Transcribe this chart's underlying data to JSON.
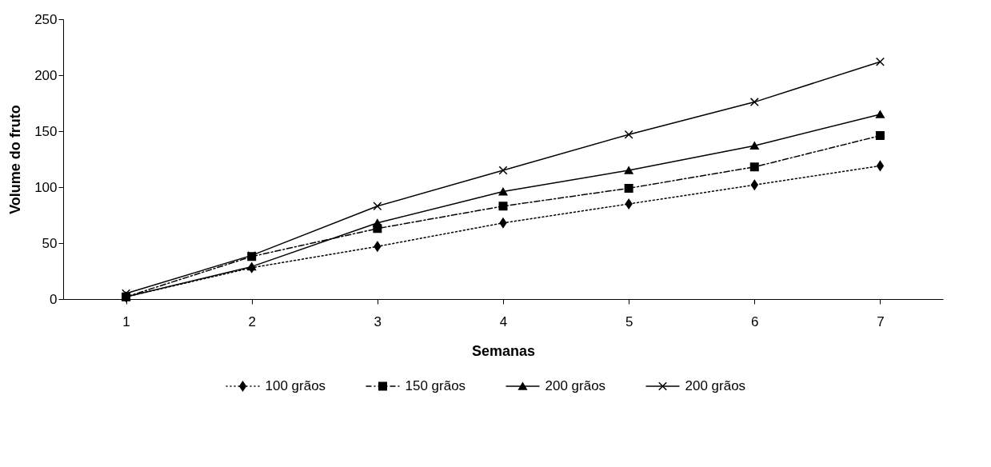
{
  "chart_data": {
    "type": "line",
    "xlabel": "Semanas",
    "ylabel": "Volume do fruto",
    "categories": [
      "1",
      "2",
      "3",
      "4",
      "5",
      "6",
      "7"
    ],
    "ylim": [
      0,
      250
    ],
    "yticks": [
      0,
      50,
      100,
      150,
      200,
      250
    ],
    "grid": false,
    "legend": "bottom",
    "series": [
      {
        "name": "100 grãos",
        "color": "#000000",
        "marker": "diamond",
        "line_style": "dotted",
        "values": [
          2,
          28,
          47,
          68,
          85,
          102,
          119
        ]
      },
      {
        "name": "150 grãos",
        "color": "#000000",
        "marker": "square",
        "line_style": "dashed",
        "values": [
          2,
          38,
          63,
          83,
          99,
          118,
          146
        ]
      },
      {
        "name": "200 grãos",
        "color": "#000000",
        "marker": "triangle",
        "line_style": "solid",
        "values": [
          2,
          29,
          68,
          96,
          115,
          137,
          165
        ]
      },
      {
        "name": "200 grãos",
        "color": "#000000",
        "marker": "cross",
        "line_style": "solid",
        "values": [
          5,
          39,
          83,
          115,
          147,
          176,
          212
        ]
      }
    ]
  }
}
